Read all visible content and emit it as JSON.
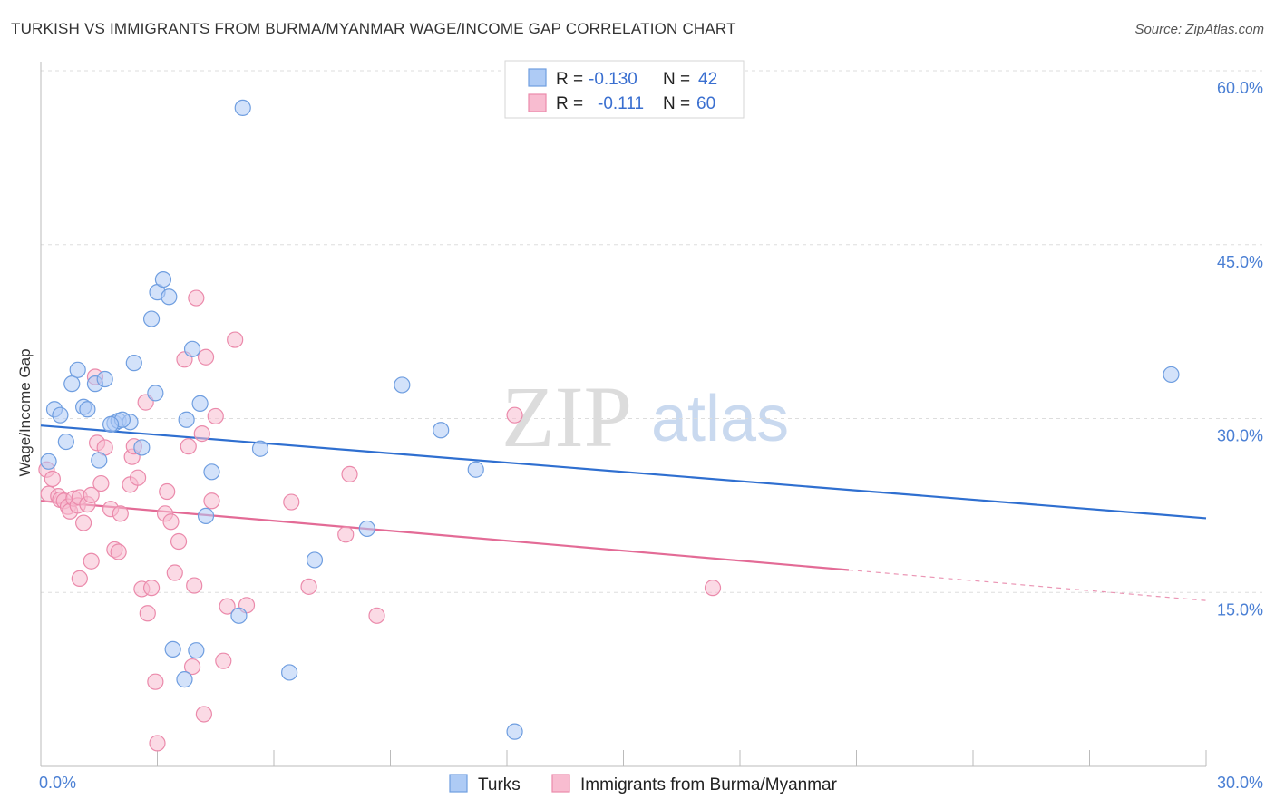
{
  "title": "TURKISH VS IMMIGRANTS FROM BURMA/MYANMAR WAGE/INCOME GAP CORRELATION CHART",
  "source": "Source: ZipAtlas.com",
  "watermark": {
    "zip": "ZIP",
    "atlas": "atlas"
  },
  "colors": {
    "turks_fill": "#aecbf5",
    "turks_stroke": "#6f9ee0",
    "turks_line": "#2f6fd0",
    "burma_fill": "#f8bcd0",
    "burma_stroke": "#eb8aab",
    "burma_line": "#e36b96",
    "grid": "#dddddd",
    "axis_text": "#4a7fd4"
  },
  "legend": {
    "rows": [
      {
        "r_label": "R =",
        "r_value": "-0.130",
        "n_label": "N =",
        "n_value": "42"
      },
      {
        "r_label": "R =",
        "r_value": "-0.111",
        "n_label": "N =",
        "n_value": "60"
      }
    ]
  },
  "bottom_legend": {
    "turks": "Turks",
    "burma": "Immigrants from Burma/Myanmar"
  },
  "chart_data": {
    "type": "scatter",
    "title": "TURKISH VS IMMIGRANTS FROM BURMA/MYANMAR WAGE/INCOME GAP CORRELATION CHART",
    "xlabel": "",
    "ylabel": "Wage/Income Gap",
    "xlim": [
      0,
      30
    ],
    "ylim": [
      0,
      60
    ],
    "x_tick_labels": [
      "0.0%",
      "30.0%"
    ],
    "y_tick_labels": [
      "15.0%",
      "30.0%",
      "45.0%",
      "60.0%"
    ],
    "y_ticks": [
      15,
      30,
      45,
      60
    ],
    "series": [
      {
        "name": "Turks",
        "r": -0.13,
        "n": 42,
        "trend": {
          "x0": 0,
          "y0": 29.4,
          "x1": 30,
          "y1": 21.4,
          "solid_until": 30
        },
        "points": [
          [
            0.2,
            26.3
          ],
          [
            0.35,
            30.8
          ],
          [
            0.5,
            30.3
          ],
          [
            0.65,
            28.0
          ],
          [
            0.8,
            33.0
          ],
          [
            0.95,
            34.2
          ],
          [
            1.1,
            31.0
          ],
          [
            1.2,
            30.8
          ],
          [
            1.4,
            33.0
          ],
          [
            1.5,
            26.4
          ],
          [
            1.65,
            33.4
          ],
          [
            1.9,
            29.6
          ],
          [
            2.0,
            29.8
          ],
          [
            2.3,
            29.7
          ],
          [
            2.4,
            34.8
          ],
          [
            2.6,
            27.5
          ],
          [
            2.85,
            38.6
          ],
          [
            2.95,
            32.2
          ],
          [
            3.0,
            40.9
          ],
          [
            3.15,
            42.0
          ],
          [
            3.3,
            40.5
          ],
          [
            3.75,
            29.9
          ],
          [
            3.9,
            36.0
          ],
          [
            4.1,
            31.3
          ],
          [
            4.4,
            25.4
          ],
          [
            5.2,
            56.8
          ],
          [
            5.65,
            27.4
          ],
          [
            7.05,
            17.8
          ],
          [
            8.4,
            20.5
          ],
          [
            9.3,
            32.9
          ],
          [
            10.3,
            29.0
          ],
          [
            11.2,
            25.6
          ],
          [
            29.1,
            33.8
          ],
          [
            2.1,
            29.9
          ],
          [
            1.8,
            29.5
          ],
          [
            3.4,
            10.1
          ],
          [
            4.0,
            10.0
          ],
          [
            5.1,
            13.0
          ],
          [
            6.4,
            8.1
          ],
          [
            12.2,
            3.0
          ],
          [
            4.25,
            21.6
          ],
          [
            3.7,
            7.5
          ]
        ]
      },
      {
        "name": "Immigrants from Burma/Myanmar",
        "r": -0.111,
        "n": 60,
        "trend": {
          "x0": 0,
          "y0": 22.9,
          "x1": 30,
          "y1": 14.3,
          "solid_until": 20.8
        },
        "points": [
          [
            0.15,
            25.6
          ],
          [
            0.2,
            23.5
          ],
          [
            0.3,
            24.8
          ],
          [
            0.45,
            23.3
          ],
          [
            0.5,
            23.0
          ],
          [
            0.6,
            22.9
          ],
          [
            0.7,
            22.4
          ],
          [
            0.75,
            22.0
          ],
          [
            0.85,
            23.1
          ],
          [
            0.95,
            22.5
          ],
          [
            1.0,
            23.2
          ],
          [
            1.1,
            21.0
          ],
          [
            1.2,
            22.6
          ],
          [
            1.3,
            23.4
          ],
          [
            1.4,
            33.6
          ],
          [
            1.45,
            27.9
          ],
          [
            1.55,
            24.4
          ],
          [
            1.65,
            27.5
          ],
          [
            1.8,
            22.2
          ],
          [
            1.9,
            18.7
          ],
          [
            2.0,
            18.5
          ],
          [
            2.05,
            21.8
          ],
          [
            2.3,
            24.3
          ],
          [
            2.35,
            26.7
          ],
          [
            2.4,
            27.6
          ],
          [
            2.5,
            24.9
          ],
          [
            2.6,
            15.3
          ],
          [
            2.7,
            31.4
          ],
          [
            2.75,
            13.2
          ],
          [
            2.85,
            15.4
          ],
          [
            2.95,
            7.3
          ],
          [
            3.0,
            2.0
          ],
          [
            3.2,
            21.8
          ],
          [
            3.25,
            23.7
          ],
          [
            3.35,
            21.1
          ],
          [
            3.45,
            16.7
          ],
          [
            3.55,
            19.4
          ],
          [
            3.7,
            35.1
          ],
          [
            3.8,
            27.6
          ],
          [
            3.9,
            8.6
          ],
          [
            3.95,
            15.6
          ],
          [
            4.0,
            40.4
          ],
          [
            4.15,
            28.7
          ],
          [
            4.2,
            4.5
          ],
          [
            4.25,
            35.3
          ],
          [
            4.4,
            22.9
          ],
          [
            4.5,
            30.2
          ],
          [
            4.7,
            9.1
          ],
          [
            4.8,
            13.8
          ],
          [
            5.0,
            36.8
          ],
          [
            5.3,
            13.9
          ],
          [
            6.45,
            22.8
          ],
          [
            6.9,
            15.5
          ],
          [
            7.85,
            20.0
          ],
          [
            7.95,
            25.2
          ],
          [
            8.65,
            13.0
          ],
          [
            12.2,
            30.3
          ],
          [
            17.3,
            15.4
          ],
          [
            1.3,
            17.7
          ],
          [
            1.0,
            16.2
          ]
        ]
      }
    ]
  }
}
